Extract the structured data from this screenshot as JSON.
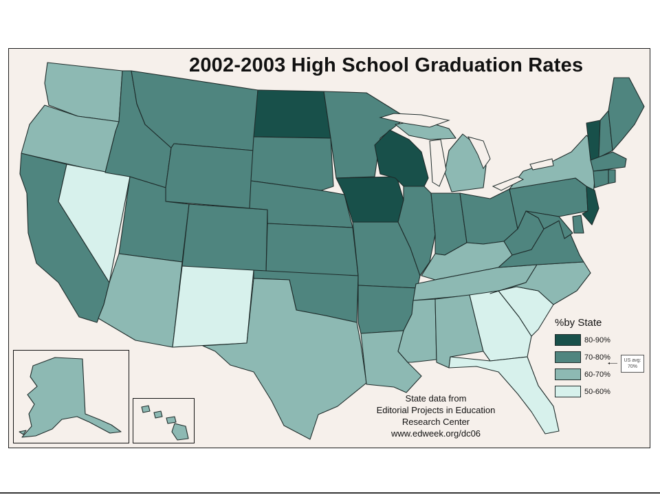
{
  "title": "2002-2003 High School Graduation Rates",
  "colors": {
    "80-90%": "#18504a",
    "70-80%": "#4f857f",
    "60-70%": "#8db9b3",
    "50-60%": "#d7f1ec",
    "background": "#f6f0eb"
  },
  "legend": {
    "title": "%by State",
    "items": [
      {
        "label": "80-90%",
        "band": "80-90%"
      },
      {
        "label": "70-80%",
        "band": "70-80%"
      },
      {
        "label": "60-70%",
        "band": "60-70%"
      },
      {
        "label": "50-60%",
        "band": "50-60%"
      }
    ]
  },
  "us_average": {
    "line1": "US avg:",
    "line2": "70%"
  },
  "source": {
    "line1": "State data from",
    "line2": "Editorial Projects in Education",
    "line3": "Research Center",
    "line4": "www.edweek.org/dc06"
  },
  "states": {
    "WA": "60-70%",
    "OR": "60-70%",
    "CA": "70-80%",
    "NV": "50-60%",
    "ID": "70-80%",
    "MT": "70-80%",
    "WY": "70-80%",
    "UT": "70-80%",
    "AZ": "60-70%",
    "CO": "70-80%",
    "NM": "50-60%",
    "ND": "80-90%",
    "SD": "70-80%",
    "NE": "70-80%",
    "KS": "70-80%",
    "OK": "70-80%",
    "TX": "60-70%",
    "MN": "70-80%",
    "IA": "80-90%",
    "MO": "70-80%",
    "AR": "70-80%",
    "LA": "60-70%",
    "WI": "80-90%",
    "IL": "70-80%",
    "MI": "60-70%",
    "IN": "70-80%",
    "OH": "70-80%",
    "KY": "60-70%",
    "TN": "60-70%",
    "MS": "60-70%",
    "AL": "60-70%",
    "GA": "50-60%",
    "FL": "50-60%",
    "SC": "50-60%",
    "NC": "60-70%",
    "VA": "70-80%",
    "WV": "70-80%",
    "PA": "70-80%",
    "NY": "60-70%",
    "NJ": "80-90%",
    "VT": "80-90%",
    "NH": "70-80%",
    "ME": "70-80%",
    "MA": "70-80%",
    "CT": "70-80%",
    "RI": "70-80%",
    "MD": "70-80%",
    "DE": "70-80%",
    "AK": "60-70%",
    "HI": "60-70%"
  }
}
